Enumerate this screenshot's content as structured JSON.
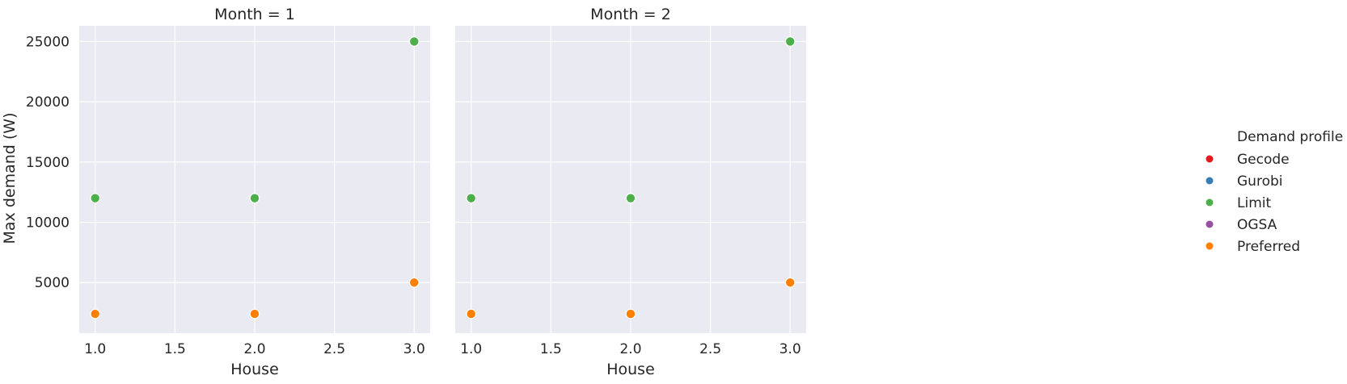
{
  "chart_data": {
    "type": "scatter",
    "style": {
      "background": "#eaeaf2",
      "grid": true,
      "grid_color": "#ffffff",
      "marker_edge": "#ffffff"
    },
    "x_label": "House",
    "y_label": "Max demand (W)",
    "xlim": [
      0.9,
      3.1
    ],
    "ylim": [
      800,
      26300
    ],
    "x_ticks": [
      1.0,
      1.5,
      2.0,
      2.5,
      3.0
    ],
    "x_tick_labels": [
      "1.0",
      "1.5",
      "2.0",
      "2.5",
      "3.0"
    ],
    "y_ticks": [
      5000,
      10000,
      15000,
      20000,
      25000
    ],
    "y_tick_labels": [
      "5000",
      "10000",
      "15000",
      "20000",
      "25000"
    ],
    "legend": {
      "title": "Demand profile",
      "placement": "right",
      "entries": [
        {
          "name": "Gecode",
          "color": "#e41a1c"
        },
        {
          "name": "Gurobi",
          "color": "#377eb8"
        },
        {
          "name": "Limit",
          "color": "#4daf4a"
        },
        {
          "name": "OGSA",
          "color": "#984ea3"
        },
        {
          "name": "Preferred",
          "color": "#ff7f00"
        }
      ]
    },
    "panels": [
      {
        "title": "Month = 1",
        "series": [
          {
            "name": "Limit",
            "color": "#4daf4a",
            "x": [
              1.0,
              2.0,
              3.0
            ],
            "y": [
              12000,
              12000,
              25000
            ]
          },
          {
            "name": "Preferred",
            "color": "#ff7f00",
            "x": [
              1.0,
              2.0,
              3.0
            ],
            "y": [
              2400,
              2400,
              5000
            ]
          }
        ]
      },
      {
        "title": "Month = 2",
        "series": [
          {
            "name": "Limit",
            "color": "#4daf4a",
            "x": [
              1.0,
              2.0,
              3.0
            ],
            "y": [
              12000,
              12000,
              25000
            ]
          },
          {
            "name": "Preferred",
            "color": "#ff7f00",
            "x": [
              1.0,
              2.0,
              3.0
            ],
            "y": [
              2400,
              2400,
              5000
            ]
          }
        ]
      }
    ]
  }
}
